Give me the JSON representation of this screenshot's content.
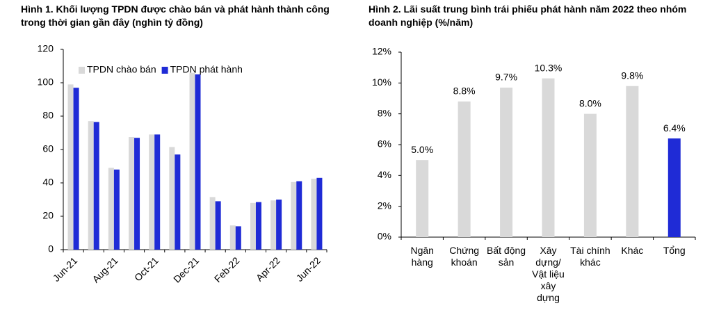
{
  "chart_data": [
    {
      "type": "bar",
      "title": "Hình 1. Khối lượng TPDN được chào bán và phát hành thành công trong thời gian gần đây (nghìn tỷ đồng)",
      "categories": [
        "Jun-21",
        null,
        "Aug-21",
        null,
        "Oct-21",
        null,
        "Dec-21",
        null,
        "Feb-22",
        null,
        "Apr-22",
        null,
        "Jun-22"
      ],
      "series": [
        {
          "name": "TPDN chào bán",
          "color": "#d9d9d9",
          "values": [
            99,
            77,
            49,
            67.5,
            69,
            61.5,
            106,
            31.5,
            14.5,
            28,
            29.5,
            40.5,
            42.5
          ]
        },
        {
          "name": "TPDN phát hành",
          "color": "#1f2bd6",
          "values": [
            97,
            76.5,
            48,
            67,
            69,
            57,
            105,
            29,
            14,
            28.5,
            30,
            41,
            43
          ]
        }
      ],
      "ylim": [
        0,
        120
      ],
      "yticks": [
        0,
        20,
        40,
        60,
        80,
        100,
        120
      ],
      "grid": false,
      "legend": "upper left"
    },
    {
      "type": "bar",
      "title": "Hình 2. Lãi suất trung bình trái phiếu phát hành năm 2022 theo nhóm doanh nghiệp (%/năm)",
      "categories": [
        "Ngân hàng",
        "Chứng khoán",
        "Bất động sản",
        "Xây dựng/ Vật liệu xây dựng",
        "Tài chính khác",
        "Khác",
        "Tổng"
      ],
      "values": [
        5.0,
        8.8,
        9.7,
        10.3,
        8.0,
        9.8,
        6.4
      ],
      "value_labels": [
        "5.0%",
        "8.8%",
        "9.7%",
        "10.3%",
        "8.0%",
        "9.8%",
        "6.4%"
      ],
      "colors": [
        "#d9d9d9",
        "#d9d9d9",
        "#d9d9d9",
        "#d9d9d9",
        "#d9d9d9",
        "#d9d9d9",
        "#1f2bd6"
      ],
      "ylim": [
        0,
        12
      ],
      "yticks": [
        {
          "value": 0,
          "label": "0%"
        },
        {
          "value": 2,
          "label": "2%"
        },
        {
          "value": 4,
          "label": "4%"
        },
        {
          "value": 6,
          "label": "6%"
        },
        {
          "value": 8,
          "label": "8%"
        },
        {
          "value": 10,
          "label": "10%"
        },
        {
          "value": 12,
          "label": "12%"
        }
      ],
      "grid": false
    }
  ]
}
